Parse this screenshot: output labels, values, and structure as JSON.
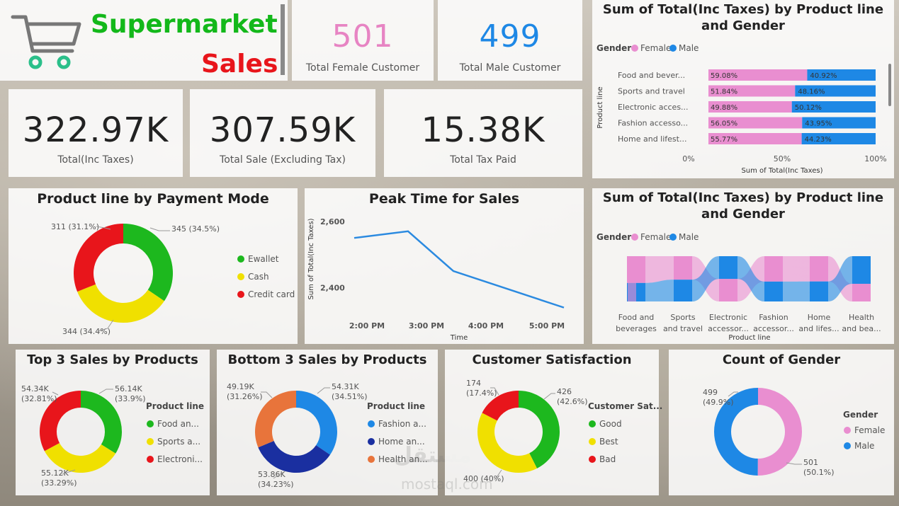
{
  "header": {
    "title_line1": "Supermarket",
    "title_line2": "Sales",
    "title_color1": "#13b81a",
    "title_color2": "#e8151b",
    "icon": "shopping-cart-icon"
  },
  "kpis": {
    "female_customers": {
      "value": "501",
      "label": "Total Female Customer",
      "color": "#e784c3"
    },
    "male_customers": {
      "value": "499",
      "label": "Total Male Customer",
      "color": "#1e88e5"
    },
    "total_inc_taxes": {
      "value": "322.97K",
      "label": "Total(Inc Taxes)"
    },
    "total_sale_excl": {
      "value": "307.59K",
      "label": "Total Sale (Excluding Tax)"
    },
    "total_tax": {
      "value": "15.38K",
      "label": "Total Tax Paid"
    }
  },
  "colors": {
    "female": "#e98ed0",
    "male": "#1e88e5",
    "green": "#1db81e",
    "yellow": "#f0e000",
    "red": "#e8151b",
    "navy": "#1a2fa0",
    "orange": "#e8743b",
    "line": "#2b8ae0"
  },
  "watermark": {
    "arabic": "مستقل",
    "latin": "mostaql.com"
  },
  "chart_data": [
    {
      "id": "gender_bar",
      "type": "bar",
      "orientation": "horizontal-stacked-100",
      "title": "Sum of Total(Inc Taxes) by Product line and Gender",
      "legend_title": "Gender",
      "xlabel": "Sum of Total(Inc Taxes)",
      "ylabel": "Product line",
      "x_ticks": [
        "0%",
        "50%",
        "100%"
      ],
      "categories": [
        "Food and bever...",
        "Sports and travel",
        "Electronic acces...",
        "Fashion accesso...",
        "Home and lifest..."
      ],
      "series": [
        {
          "name": "Female",
          "values": [
            59.08,
            51.84,
            49.88,
            56.05,
            55.77
          ],
          "labels": [
            "59.08%",
            "51.84%",
            "49.88%",
            "56.05%",
            "55.77%"
          ]
        },
        {
          "name": "Male",
          "values": [
            40.92,
            48.16,
            50.12,
            43.95,
            44.23
          ],
          "labels": [
            "40.92%",
            "48.16%",
            "50.12%",
            "43.95%",
            "44.23%"
          ]
        }
      ],
      "legend_position": "top-left"
    },
    {
      "id": "payment_donut",
      "type": "pie",
      "style": "donut",
      "title": "Product line by Payment Mode",
      "categories": [
        "Ewallet",
        "Cash",
        "Credit card"
      ],
      "values": [
        345,
        344,
        311
      ],
      "labels": [
        "345 (34.5%)",
        "344 (34.4%)",
        "311 (31.1%)"
      ],
      "legend_position": "right"
    },
    {
      "id": "peak_line",
      "type": "line",
      "title": "Peak Time for Sales",
      "xlabel": "Time",
      "ylabel": "Sum of Total(Inc Taxes)",
      "x": [
        "2:00 PM",
        "3:00 PM",
        "4:00 PM",
        "5:00 PM"
      ],
      "values": [
        2550,
        2570,
        2450,
        2340
      ],
      "y_ticks": [
        "2,400",
        "2,600"
      ],
      "ylim": [
        2320,
        2640
      ]
    },
    {
      "id": "ribbon",
      "type": "area",
      "style": "ribbon",
      "title": "Sum of Total(Inc Taxes) by Product line and Gender",
      "legend_title": "Gender",
      "xlabel": "Product line",
      "categories": [
        [
          "Food and",
          "beverages"
        ],
        [
          "Sports",
          "and travel"
        ],
        [
          "Electronic",
          "accessor..."
        ],
        [
          "Fashion",
          "accessor..."
        ],
        [
          "Home",
          "and lifes..."
        ],
        [
          "Health",
          "and bea..."
        ]
      ],
      "series": [
        {
          "name": "Female",
          "values": [
            59.08,
            51.84,
            49.88,
            56.05,
            55.77,
            39.0
          ]
        },
        {
          "name": "Male",
          "values": [
            40.92,
            48.16,
            50.12,
            43.95,
            44.23,
            61.0
          ]
        }
      ],
      "legend_position": "top-left"
    },
    {
      "id": "top3",
      "type": "pie",
      "style": "donut",
      "title": "Top 3 Sales by Products",
      "legend_title": "Product line",
      "categories": [
        "Food an...",
        "Sports a...",
        "Electroni..."
      ],
      "values": [
        56.14,
        55.12,
        54.34
      ],
      "labels": [
        [
          "56.14K",
          "(33.9%)"
        ],
        [
          "55.12K",
          "(33.29%)"
        ],
        [
          "54.34K",
          "(32.81%)"
        ]
      ],
      "legend_position": "right"
    },
    {
      "id": "bottom3",
      "type": "pie",
      "style": "donut",
      "title": "Bottom 3 Sales by Products",
      "legend_title": "Product line",
      "categories": [
        "Fashion a...",
        "Home an...",
        "Health an..."
      ],
      "values": [
        54.31,
        53.86,
        49.19
      ],
      "labels": [
        [
          "54.31K",
          "(34.51%)"
        ],
        [
          "53.86K",
          "(34.23%)"
        ],
        [
          "49.19K",
          "(31.26%)"
        ]
      ],
      "legend_position": "right"
    },
    {
      "id": "satisfaction",
      "type": "pie",
      "style": "donut",
      "title": "Customer Satisfaction",
      "legend_title": "Customer Sat...",
      "categories": [
        "Good",
        "Best",
        "Bad"
      ],
      "values": [
        426,
        400,
        174
      ],
      "labels": [
        [
          "426",
          "(42.6%)"
        ],
        [
          "400 (40%)"
        ],
        [
          "174",
          "(17.4%)"
        ]
      ],
      "legend_position": "right"
    },
    {
      "id": "gender_count",
      "type": "pie",
      "style": "donut",
      "title": "Count of Gender",
      "legend_title": "Gender",
      "categories": [
        "Female",
        "Male"
      ],
      "values": [
        501,
        499
      ],
      "labels": [
        [
          "501",
          "(50.1%)"
        ],
        [
          "499",
          "(49.9%)"
        ]
      ],
      "legend_position": "right"
    }
  ]
}
